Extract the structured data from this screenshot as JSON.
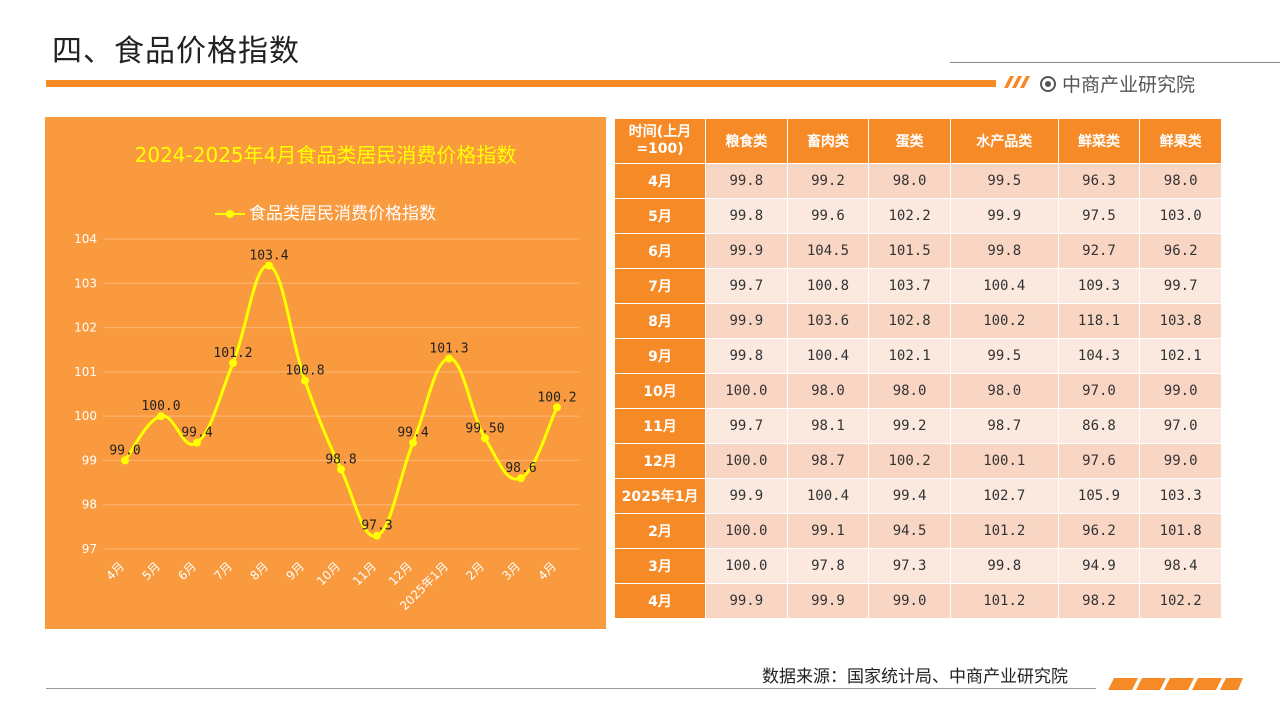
{
  "page": {
    "title": "四、食品价格指数",
    "brand": "中商产业研究院",
    "source": "数据来源：国家统计局、中商产业研究院"
  },
  "colors": {
    "accent": "#f58a26",
    "chart_bg": "#f99a3e",
    "line": "#ffff00"
  },
  "chart_data": {
    "type": "line",
    "title": "2024-2025年4月食品类居民消费价格指数",
    "categories": [
      "4月",
      "5月",
      "6月",
      "7月",
      "8月",
      "9月",
      "10月",
      "11月",
      "12月",
      "2025年1月",
      "2月",
      "3月",
      "4月"
    ],
    "series": [
      {
        "name": "食品类居民消费价格指数",
        "values": [
          99.0,
          100.0,
          99.4,
          101.2,
          103.4,
          100.8,
          98.8,
          97.3,
          99.4,
          101.3,
          99.5,
          98.6,
          100.2
        ]
      }
    ],
    "data_labels": [
      "99.0",
      "100.0",
      "99.4",
      "101.2",
      "103.4",
      "100.8",
      "98.8",
      "97.3",
      "99.4",
      "101.3",
      "99.50",
      "98.6",
      "100.2"
    ],
    "ylim": [
      97,
      104
    ],
    "yticks": [
      "97",
      "98",
      "99",
      "100",
      "101",
      "102",
      "103",
      "104"
    ],
    "grid": true,
    "legend_position": "top"
  },
  "table": {
    "headers": [
      "时间(上月=100)",
      "粮食类",
      "畜肉类",
      "蛋类",
      "水产品类",
      "鲜菜类",
      "鲜果类"
    ],
    "rows": [
      [
        "4月",
        "99.8",
        "99.2",
        "98.0",
        "99.5",
        "96.3",
        "98.0"
      ],
      [
        "5月",
        "99.8",
        "99.6",
        "102.2",
        "99.9",
        "97.5",
        "103.0"
      ],
      [
        "6月",
        "99.9",
        "104.5",
        "101.5",
        "99.8",
        "92.7",
        "96.2"
      ],
      [
        "7月",
        "99.7",
        "100.8",
        "103.7",
        "100.4",
        "109.3",
        "99.7"
      ],
      [
        "8月",
        "99.9",
        "103.6",
        "102.8",
        "100.2",
        "118.1",
        "103.8"
      ],
      [
        "9月",
        "99.8",
        "100.4",
        "102.1",
        "99.5",
        "104.3",
        "102.1"
      ],
      [
        "10月",
        "100.0",
        "98.0",
        "98.0",
        "98.0",
        "97.0",
        "99.0"
      ],
      [
        "11月",
        "99.7",
        "98.1",
        "99.2",
        "98.7",
        "86.8",
        "97.0"
      ],
      [
        "12月",
        "100.0",
        "98.7",
        "100.2",
        "100.1",
        "97.6",
        "99.0"
      ],
      [
        "2025年1月",
        "99.9",
        "100.4",
        "99.4",
        "102.7",
        "105.9",
        "103.3"
      ],
      [
        "2月",
        "100.0",
        "99.1",
        "94.5",
        "101.2",
        "96.2",
        "101.8"
      ],
      [
        "3月",
        "100.0",
        "97.8",
        "97.3",
        "99.8",
        "94.9",
        "98.4"
      ],
      [
        "4月",
        "99.9",
        "99.9",
        "99.0",
        "101.2",
        "98.2",
        "102.2"
      ]
    ]
  }
}
